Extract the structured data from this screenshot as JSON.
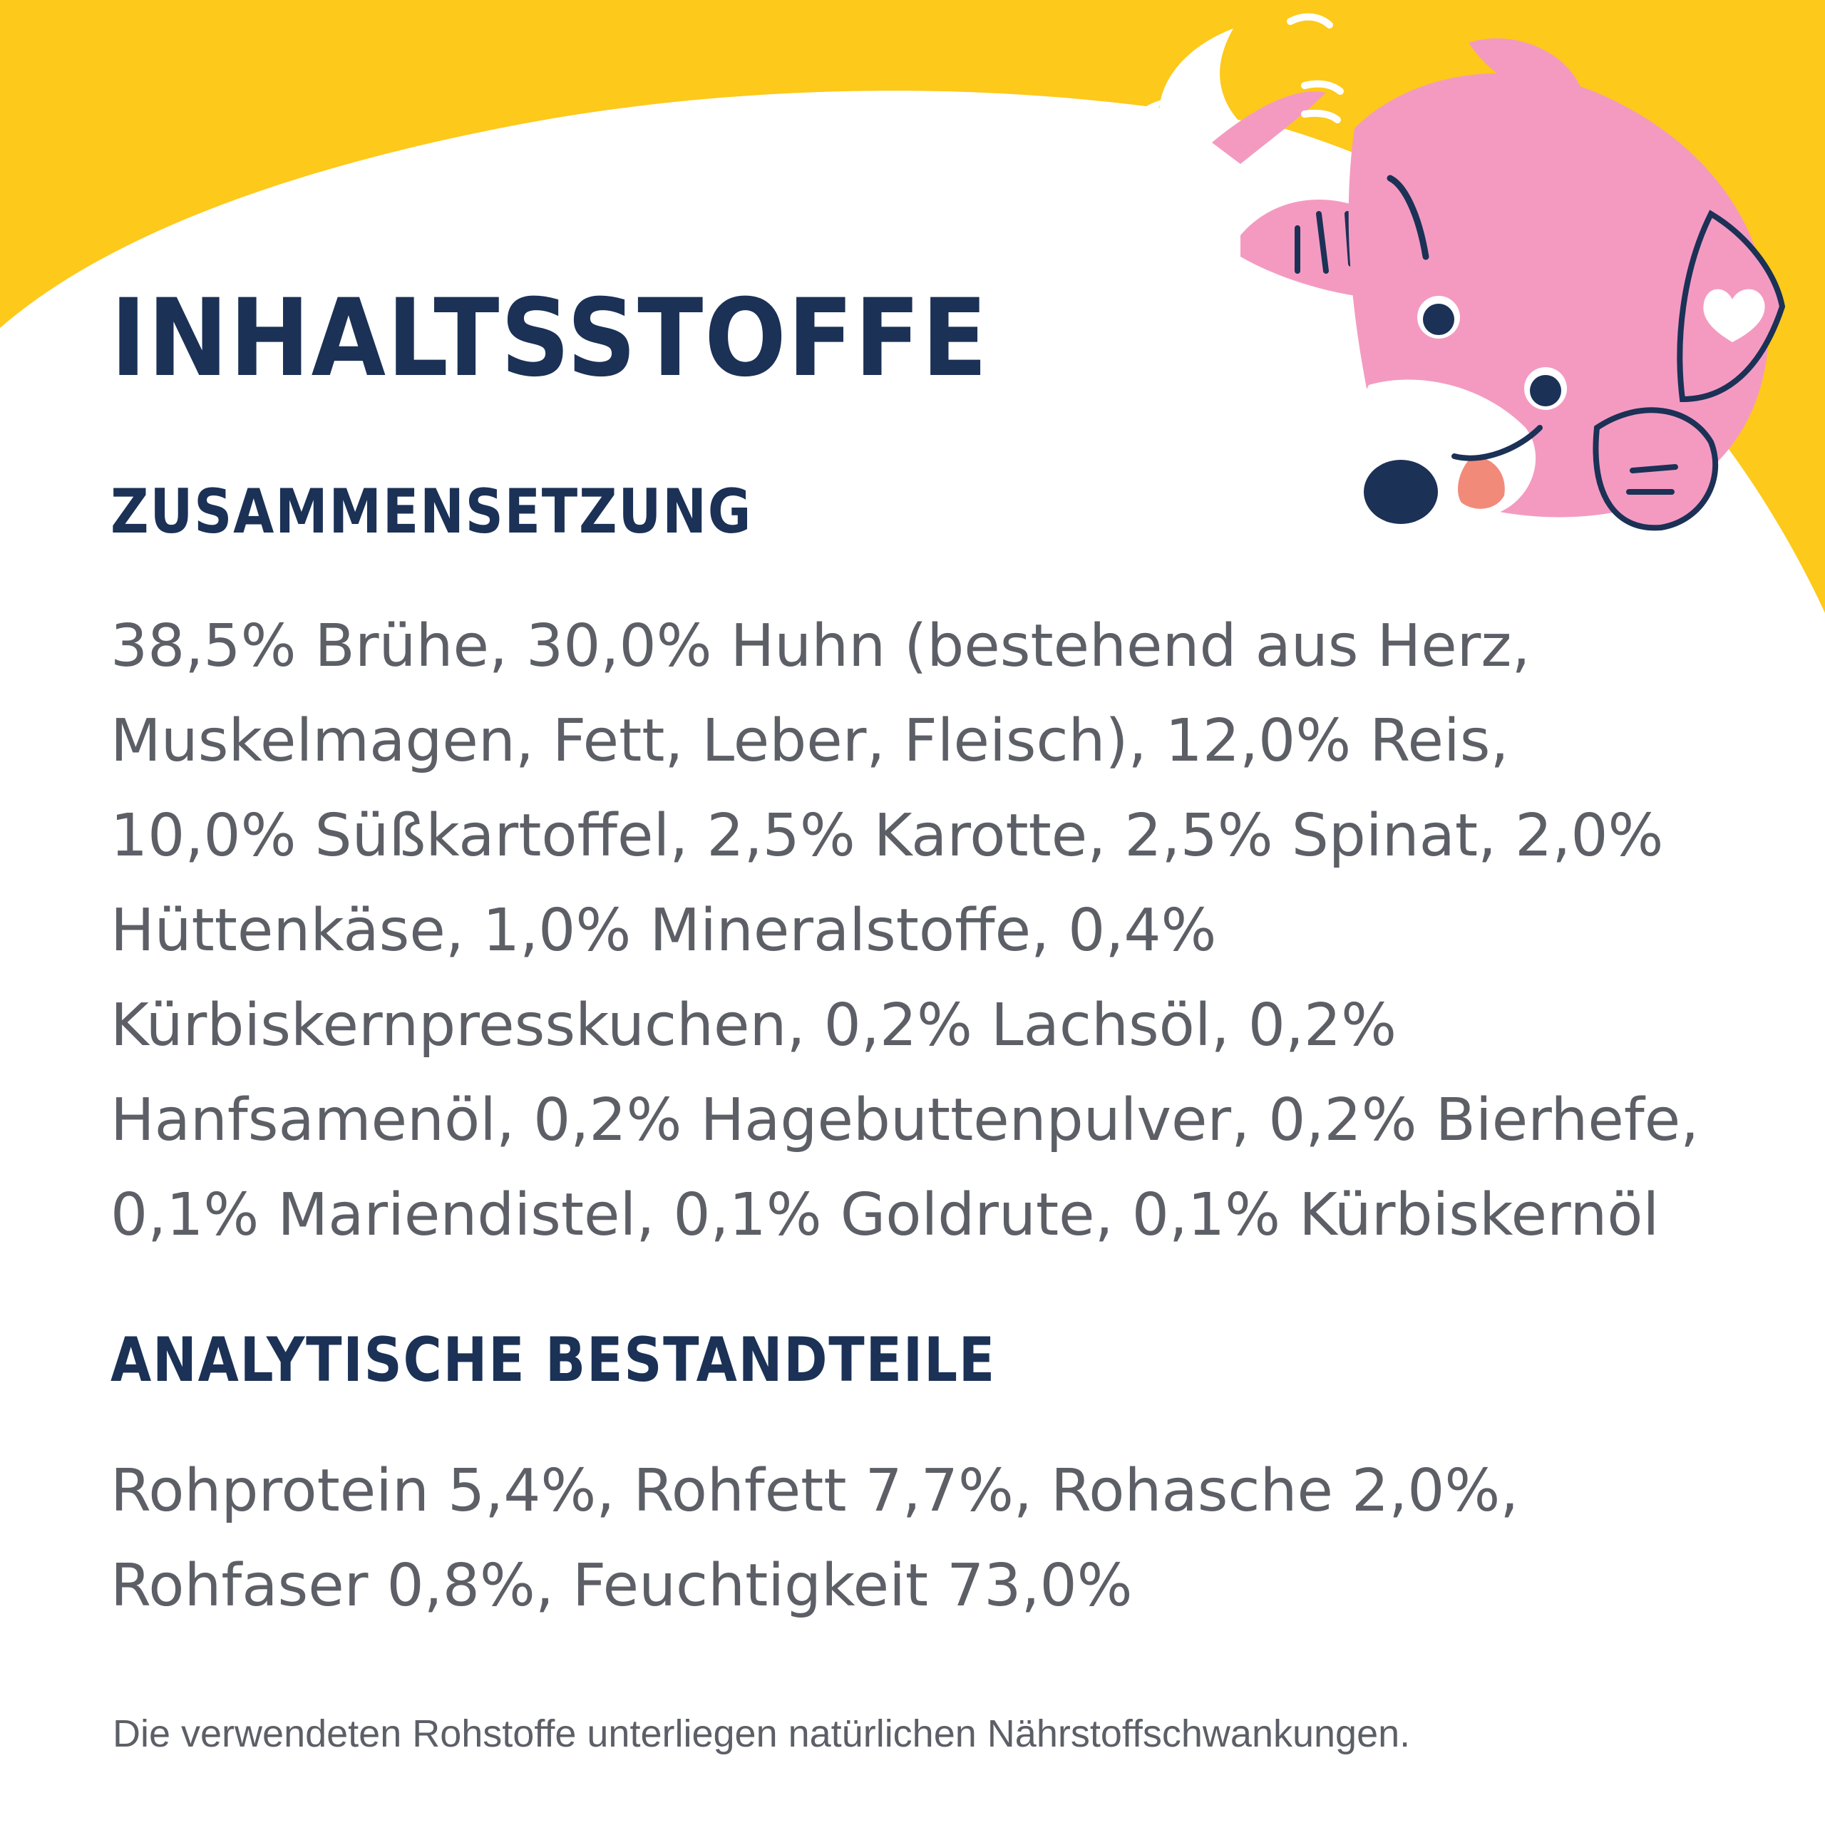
{
  "title": "INHALTSSTOFFE",
  "composition": {
    "heading": "ZUSAMMENSETZUNG",
    "lines": [
      "38,5% Brühe, 30,0% Huhn (bestehend aus Herz,",
      "Muskelmagen, Fett, Leber, Fleisch), 12,0% Reis,",
      "10,0% Süßkartoffel, 2,5% Karotte, 2,5% Spinat, 2,0%",
      "Hüttenkäse, 1,0% Mineralstoffe, 0,4%",
      "Kürbiskernpresskuchen, 0,2% Lachsöl, 0,2%",
      "Hanfsamenöl, 0,2% Hagebuttenpulver, 0,2% Bierhefe,",
      "0,1% Mariendistel, 0,1% Goldrute, 0,1% Kürbiskernöl"
    ]
  },
  "analysis": {
    "heading": "ANALYTISCHE BESTANDTEILE",
    "lines": [
      "Rohprotein 5,4%, Rohfett 7,7%, Rohasche 2,0%,",
      "Rohfaser 0,8%, Feuchtigkeit 73,0%"
    ]
  },
  "footnote": "Die verwendeten Rohstoffe unterliegen natürlichen Nährstoffschwankungen.",
  "colors": {
    "yellow": "#fdc91a",
    "navy": "#1b3156",
    "text_gray": "#5c5f66",
    "dog_pink": "#f49ac1",
    "tongue": "#f28a7a"
  },
  "icons": {
    "mascot": "pink-dog-mascot-icon"
  }
}
